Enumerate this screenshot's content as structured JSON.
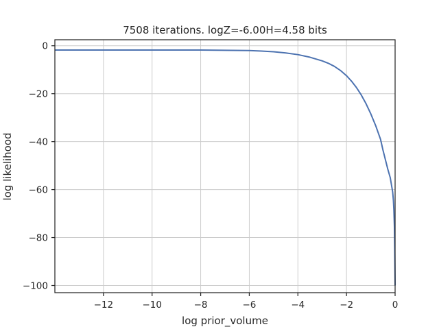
{
  "chart_data": {
    "type": "line",
    "title": "7508 iterations. logZ=-6.00H=4.58 bits",
    "xlabel": "log prior_volume",
    "ylabel": "log likelihood",
    "xlim": [
      -14,
      0
    ],
    "ylim": [
      -103,
      2.5
    ],
    "xticks": [
      -12,
      -10,
      -8,
      -6,
      -4,
      -2,
      0
    ],
    "yticks": [
      0,
      -20,
      -40,
      -60,
      -80,
      -100
    ],
    "xtick_labels": [
      "−12",
      "−10",
      "−8",
      "−6",
      "−4",
      "−2",
      "0"
    ],
    "ytick_labels": [
      "0",
      "−20",
      "−40",
      "−60",
      "−80",
      "−100"
    ],
    "grid": true,
    "series": [
      {
        "color": "#4c72b0",
        "x": [
          -14,
          -13,
          -12,
          -11,
          -10,
          -9,
          -8,
          -7,
          -6,
          -5.5,
          -5,
          -4.5,
          -4,
          -3.5,
          -3,
          -2.75,
          -2.5,
          -2.25,
          -2,
          -1.8,
          -1.6,
          -1.4,
          -1.2,
          -1,
          -0.8,
          -0.6,
          -0.5,
          -0.4,
          -0.3,
          -0.2,
          -0.15,
          -0.1,
          -0.07,
          -0.05,
          -0.03,
          -0.015,
          0
        ],
        "y": [
          -1.8,
          -1.8,
          -1.8,
          -1.8,
          -1.8,
          -1.8,
          -1.8,
          -1.9,
          -2.0,
          -2.2,
          -2.5,
          -3.0,
          -3.7,
          -4.8,
          -6.3,
          -7.3,
          -8.6,
          -10.3,
          -12.5,
          -14.7,
          -17.3,
          -20.4,
          -24.1,
          -28.4,
          -33.3,
          -39.0,
          -43.5,
          -47.5,
          -51.5,
          -55.0,
          -58.0,
          -61.0,
          -64.5,
          -68.5,
          -75.0,
          -85.0,
          -100.0
        ]
      }
    ]
  }
}
